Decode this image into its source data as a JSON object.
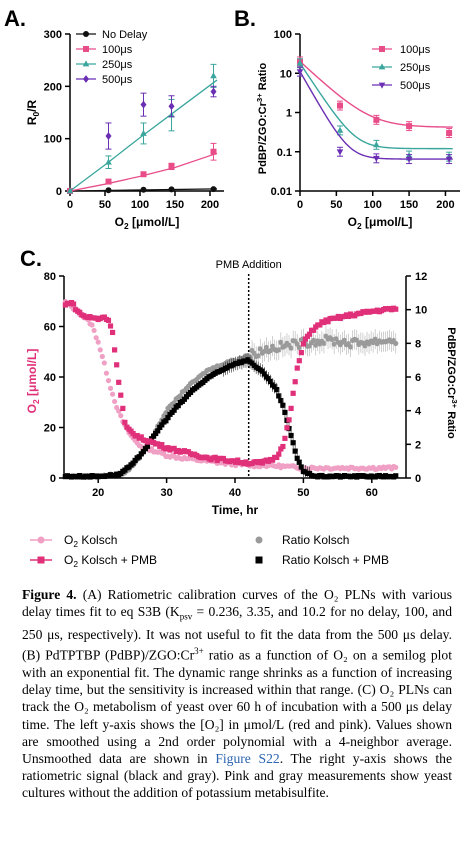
{
  "colors": {
    "no_delay": "#111111",
    "us100": "#e84d8a",
    "us250": "#3aa69d",
    "us500": "#6a2fb3",
    "o2_kolsch": "#f0a0c4",
    "o2_kolsch_pmb": "#e0307a",
    "ratio_kolsch": "#9a9a9a",
    "ratio_kolsch_pmb": "#000000",
    "link": "#2a63b0"
  },
  "chart_data": [
    {
      "panel": "A.",
      "type": "scatter",
      "xlabel": "O2 [μmol/L]",
      "ylabel": "R0/R",
      "xlim": [
        0,
        220
      ],
      "ylim": [
        0,
        300
      ],
      "xticks": [
        0,
        50,
        100,
        150,
        200
      ],
      "yticks": [
        0,
        100,
        200,
        300
      ],
      "legend_position": "top-left",
      "series": [
        {
          "name": "No Delay",
          "marker": "circle",
          "color": "#111111",
          "x": [
            0,
            55,
            105,
            145,
            205
          ],
          "y": [
            0,
            1.5,
            2.5,
            3,
            3.5
          ],
          "err": [
            0,
            0,
            0,
            0,
            0
          ],
          "fit_x": [
            0,
            210
          ],
          "fit_y": [
            0,
            4
          ]
        },
        {
          "name": "100μs",
          "marker": "square",
          "color": "#e84d8a",
          "x": [
            0,
            55,
            105,
            145,
            205
          ],
          "y": [
            0,
            18,
            32,
            47,
            75
          ],
          "err": [
            0,
            4,
            4,
            6,
            16
          ],
          "fit_x": [
            0,
            50,
            100,
            150,
            210
          ],
          "fit_y": [
            0,
            13,
            28,
            45,
            72
          ]
        },
        {
          "name": "250μs",
          "marker": "triangle",
          "color": "#3aa69d",
          "x": [
            0,
            55,
            105,
            145,
            205
          ],
          "y": [
            0,
            55,
            110,
            145,
            220
          ],
          "err": [
            0,
            12,
            20,
            30,
            22
          ],
          "fit_x": [
            0,
            50,
            100,
            150,
            210
          ],
          "fit_y": [
            0,
            50,
            102,
            152,
            212
          ]
        },
        {
          "name": "500μs",
          "marker": "diamond",
          "color": "#6a2fb3",
          "x": [
            55,
            105,
            145,
            205
          ],
          "y": [
            105,
            165,
            162,
            190
          ],
          "err": [
            25,
            22,
            20,
            10
          ]
        }
      ]
    },
    {
      "panel": "B.",
      "type": "scatter",
      "xlabel": "O2 [μmol/L]",
      "ylabel": "PdBP/ZGO:Cr3+ Ratio",
      "yscale": "log",
      "xlim": [
        0,
        220
      ],
      "ylim": [
        0.01,
        100
      ],
      "xticks": [
        0,
        50,
        100,
        150,
        200
      ],
      "yticks": [
        0.01,
        0.1,
        1,
        10,
        100
      ],
      "legend_position": "top-right",
      "series": [
        {
          "name": "100μs",
          "marker": "square",
          "color": "#e84d8a",
          "x": [
            0,
            55,
            105,
            150,
            205
          ],
          "y": [
            20,
            1.5,
            0.65,
            0.45,
            0.3
          ]
        },
        {
          "name": "250μs",
          "marker": "triangle",
          "color": "#3aa69d",
          "x": [
            0,
            55,
            105,
            150,
            205
          ],
          "y": [
            18,
            0.35,
            0.15,
            0.08,
            0.075
          ]
        },
        {
          "name": "500μs",
          "marker": "triangle-down",
          "color": "#6a2fb3",
          "x": [
            0,
            55,
            105,
            150,
            205
          ],
          "y": [
            11,
            0.1,
            0.068,
            0.065,
            0.065
          ]
        }
      ]
    },
    {
      "panel": "C.",
      "type": "scatter",
      "xlabel": "Time, hr",
      "ylabel_left": "O2 [μmol/L]",
      "ylabel_right": "PdBP/ZGO:Cr3+ Ratio",
      "xlim": [
        15,
        65
      ],
      "ylim_left": [
        0,
        80
      ],
      "ylim_right": [
        0,
        12
      ],
      "xticks": [
        20,
        30,
        40,
        50,
        60
      ],
      "yticks_left": [
        0,
        20,
        40,
        60,
        80
      ],
      "yticks_right": [
        0,
        2,
        4,
        6,
        8,
        10,
        12
      ],
      "annotation": {
        "text": "PMB Addition",
        "x": 42
      },
      "legend_position": "bottom",
      "series": [
        {
          "name": "O2 Kolsch",
          "axis": "left",
          "marker": "circle",
          "color": "#f0a0c4",
          "x": [
            15,
            17,
            19,
            20,
            21,
            22,
            23,
            24,
            25,
            26,
            28,
            30,
            32,
            35,
            38,
            42,
            45,
            50,
            55,
            60,
            63
          ],
          "y": [
            70,
            66,
            61,
            54,
            44,
            34,
            26,
            20,
            16,
            13,
            11,
            9,
            8,
            7,
            6,
            5,
            5,
            4,
            4,
            4,
            4
          ]
        },
        {
          "name": "O2 Kolsch + PMB",
          "axis": "left",
          "marker": "square",
          "color": "#e0307a",
          "x": [
            15,
            16,
            17,
            18,
            20,
            21,
            22,
            23,
            24,
            26,
            28,
            30,
            33,
            36,
            39,
            42,
            44,
            46,
            47,
            48,
            49,
            50,
            51,
            53,
            56,
            60,
            63
          ],
          "y": [
            68,
            70,
            66,
            64,
            63,
            64,
            60,
            38,
            20,
            16,
            14,
            12,
            10,
            8,
            7,
            6,
            6,
            8,
            13,
            24,
            42,
            53,
            58,
            62,
            64,
            66,
            67
          ]
        },
        {
          "name": "Ratio Kolsch",
          "axis": "right",
          "marker": "circle",
          "color": "#9a9a9a",
          "x": [
            15,
            20,
            24,
            26,
            28,
            30,
            33,
            36,
            39,
            42,
            45,
            48,
            51,
            54,
            57,
            60,
            63
          ],
          "y": [
            0.1,
            0.1,
            0.3,
            1.2,
            2.5,
            4,
            5.4,
            6.4,
            6.9,
            7.3,
            7.7,
            7.9,
            8.1,
            8.2,
            8.0,
            8.1,
            8.2
          ]
        },
        {
          "name": "Ratio Kolsch + PMB",
          "axis": "right",
          "marker": "square",
          "color": "#000000",
          "x": [
            15,
            20,
            23,
            25,
            27,
            29,
            31,
            34,
            37,
            40,
            42,
            44,
            46,
            47,
            48,
            49,
            50,
            51,
            52,
            55,
            60,
            63
          ],
          "y": [
            0.1,
            0.1,
            0.2,
            0.8,
            1.8,
            3,
            4,
            5.3,
            6.2,
            6.8,
            7.0,
            6.3,
            5.3,
            4.3,
            2.8,
            1.3,
            0.4,
            0.2,
            0.1,
            0.1,
            0.1,
            0.1
          ]
        }
      ]
    }
  ],
  "figure_C": {
    "panel_letter": "C.",
    "annotation": "PMB Addition",
    "xlabel": "Time, hr",
    "legend": {
      "o2_kolsch": "O₂ Kolsch",
      "o2_kolsch_pmb": "O₂ Kolsch + PMB",
      "ratio_kolsch": "Ratio Kolsch",
      "ratio_kolsch_pmb": "Ratio Kolsch + PMB"
    }
  },
  "caption": {
    "label": "Figure 4.",
    "part1": " (A) Ratiometric calibration curves of the O₂ PLNs with various delay times fit to eq S3B (K",
    "ksv_sub": "psv",
    "part2": " = 0.236, 3.35, and 10.2 for no delay, 100, and 250 μs, respectively). It was not useful to fit the data from the 500 μs delay. (B) PdTPTBP (PdBP)/ZGO:Cr",
    "cr_sup": "3+",
    "part3": " ratio as a function of O₂ on a semilog plot with an exponential fit. The dynamic range shrinks as a function of increasing delay time, but the sensitivity is increased within that range. (C) O₂ PLNs can track the O₂ metabolism of yeast over 60 h of incubation with a 500 μs delay time. The left y-axis shows the [O₂] in μmol/L (red and pink). Values shown are smoothed using a 2nd order polynomial with a 4-neighbor average. Unsmoothed data are shown in ",
    "link": "Figure S22",
    "part4": ". The right y-axis shows the ratiometric signal (black and gray). Pink and gray measurements show yeast cultures without the addition of potassium metabisulfite."
  }
}
